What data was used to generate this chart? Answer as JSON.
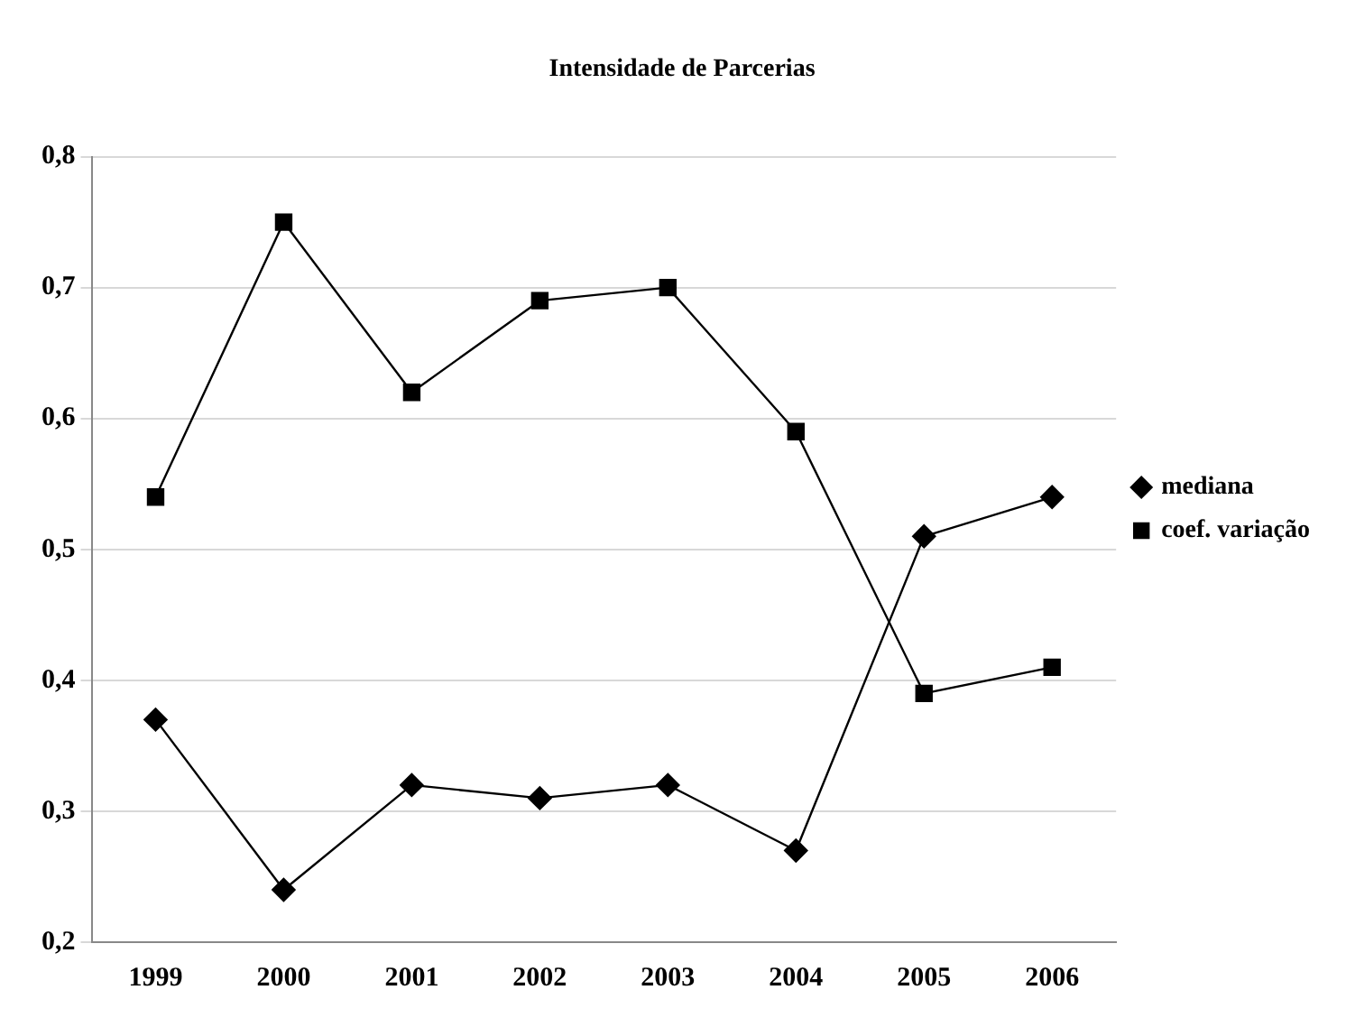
{
  "chart_data": {
    "type": "line",
    "title": "Intensidade de Parcerias",
    "categories": [
      "1999",
      "2000",
      "2001",
      "2002",
      "2003",
      "2004",
      "2005",
      "2006"
    ],
    "series": [
      {
        "name": "mediana",
        "color": "#000000",
        "marker": "diamond",
        "values": [
          0.37,
          0.24,
          0.32,
          0.31,
          0.32,
          0.27,
          0.51,
          0.54
        ]
      },
      {
        "name": "coef. variação",
        "color": "#000000",
        "marker": "square",
        "values": [
          0.54,
          0.75,
          0.62,
          0.69,
          0.7,
          0.59,
          0.39,
          0.41
        ]
      }
    ],
    "ylim": [
      0.2,
      0.8
    ],
    "yticks": [
      {
        "value": 0.2,
        "label": "0,2"
      },
      {
        "value": 0.3,
        "label": "0,3"
      },
      {
        "value": 0.4,
        "label": "0,4"
      },
      {
        "value": 0.5,
        "label": "0,5"
      },
      {
        "value": 0.6,
        "label": "0,6"
      },
      {
        "value": 0.7,
        "label": "0,7"
      },
      {
        "value": 0.8,
        "label": "0,8"
      }
    ],
    "grid": "y",
    "legend": "right"
  }
}
